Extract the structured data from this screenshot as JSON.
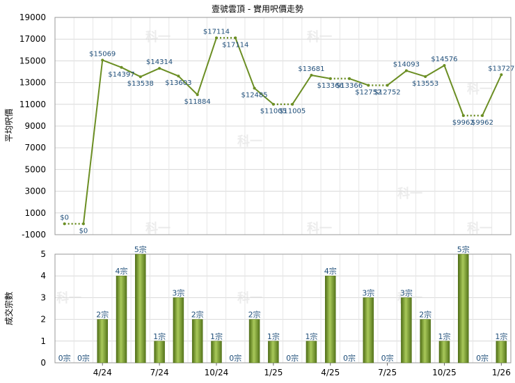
{
  "chart_data": [
    {
      "type": "line",
      "title": "壹號雲頂 - 實用呎價走勢",
      "ylabel": "平均呎價",
      "ylim": [
        -1000,
        19000
      ],
      "yticks": [
        -1000,
        1000,
        3000,
        5000,
        7000,
        9000,
        11000,
        13000,
        15000,
        17000,
        19000
      ],
      "grid": true,
      "line_color": "#6b8e23",
      "series": [
        {
          "values": [
            0,
            0,
            15069,
            14397,
            13538,
            14314,
            13603,
            11884,
            17114,
            17114,
            12485,
            11005,
            11005,
            13681,
            13366,
            13366,
            12752,
            12752,
            14093,
            13553,
            14576,
            9962,
            9962,
            13727
          ],
          "labels": [
            "$0",
            "$0",
            "$15069",
            "$14397",
            "$13538",
            "$14314",
            "$13603",
            "$11884",
            "$17114",
            "$17114",
            "$12485",
            "$11005",
            "$11005",
            "$13681",
            "$13366",
            "$13366",
            "$12752",
            "$12752",
            "$14093",
            "$13553",
            "$14576",
            "$9962",
            "$9962",
            "$13727"
          ],
          "carried": [
            false,
            true,
            false,
            false,
            false,
            false,
            false,
            false,
            false,
            true,
            false,
            false,
            true,
            false,
            false,
            true,
            false,
            true,
            false,
            false,
            false,
            false,
            true,
            false
          ]
        }
      ]
    },
    {
      "type": "bar",
      "ylabel": "成交宗數",
      "ylim": [
        0,
        5
      ],
      "yticks": [
        0,
        1,
        2,
        3,
        4,
        5
      ],
      "grid": true,
      "bar_color": "#6b8e23",
      "categories": [
        "",
        "",
        "4/24",
        "",
        "",
        "7/24",
        "",
        "",
        "10/24",
        "",
        "",
        "1/25",
        "",
        "",
        "4/25",
        "",
        "",
        "7/25",
        "",
        "",
        "10/25",
        "",
        "",
        "1/26"
      ],
      "values": [
        0,
        0,
        2,
        4,
        5,
        1,
        3,
        2,
        1,
        0,
        2,
        1,
        0,
        1,
        4,
        0,
        3,
        0,
        3,
        2,
        1,
        5,
        0,
        1
      ],
      "labels": [
        "0宗",
        "0宗",
        "2宗",
        "4宗",
        "5宗",
        "1宗",
        "3宗",
        "2宗",
        "1宗",
        "0宗",
        "2宗",
        "1宗",
        "0宗",
        "1宗",
        "4宗",
        "0宗",
        "3宗",
        "0宗",
        "3宗",
        "2宗",
        "1宗",
        "5宗",
        "0宗",
        "1宗"
      ]
    }
  ],
  "watermark_text": "科一"
}
